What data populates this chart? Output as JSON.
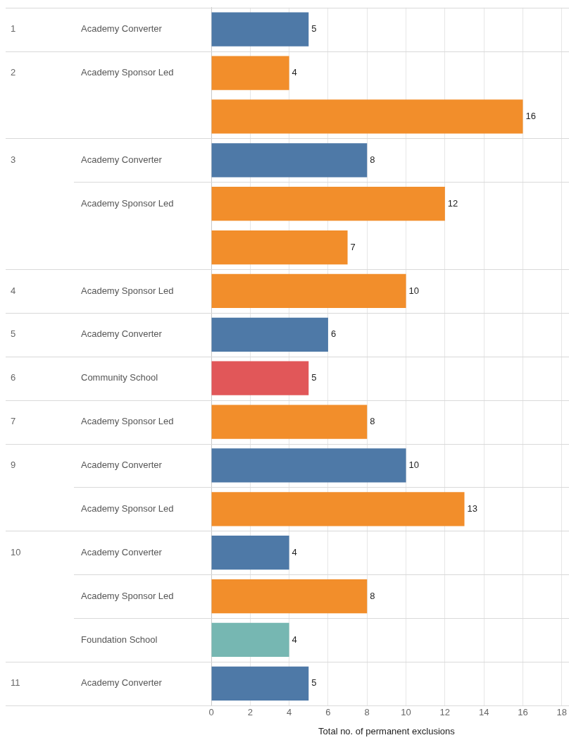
{
  "chart_data": {
    "type": "bar",
    "orientation": "horizontal",
    "xlabel": "Total no. of permanent exclusions",
    "categories": [
      "Academy Converter",
      "Academy Sponsor Led",
      null,
      "Academy Converter",
      "Academy Sponsor Led",
      null,
      "Academy Sponsor Led",
      "Academy Converter",
      "Community School",
      "Academy Sponsor Led",
      "Academy Converter",
      "Academy Sponsor Led",
      "Academy Converter",
      "Academy Sponsor Led",
      "Foundation School",
      "Academy Converter"
    ],
    "values": [
      5,
      4,
      16,
      8,
      12,
      7,
      10,
      6,
      5,
      8,
      10,
      13,
      4,
      8,
      4,
      5
    ],
    "colors": [
      "#4e79a7",
      "#f28e2b",
      "#f28e2b",
      "#4e79a7",
      "#f28e2b",
      "#f28e2b",
      "#f28e2b",
      "#4e79a7",
      "#e15759",
      "#f28e2b",
      "#4e79a7",
      "#f28e2b",
      "#4e79a7",
      "#f28e2b",
      "#76b7b2",
      "#4e79a7"
    ],
    "xlim": [
      0,
      18
    ],
    "xticks": [
      0,
      2,
      4,
      6,
      8,
      10,
      12,
      14,
      16,
      18
    ],
    "grid": "x",
    "data_labels": true,
    "legend": false,
    "annotations": [
      "1",
      "2",
      "3",
      "4",
      "5",
      "6",
      "7",
      "9",
      "10",
      "11"
    ]
  }
}
